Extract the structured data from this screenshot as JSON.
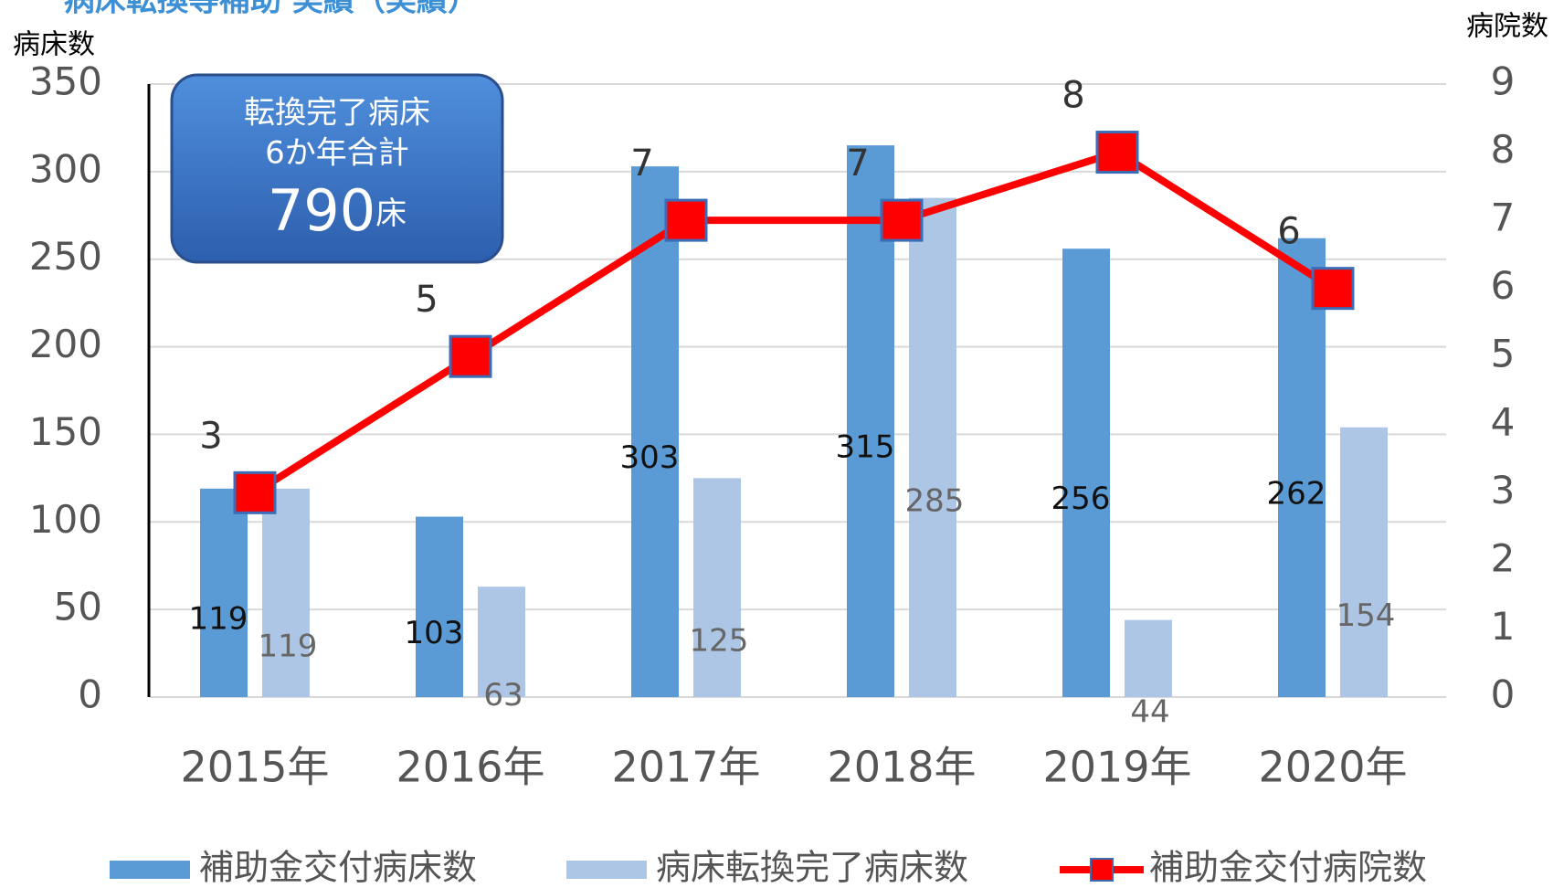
{
  "chart_data": {
    "type": "bar",
    "title": "病床転換等補助 実績（実績）",
    "y_label": "病床数",
    "y2_label": "病院数",
    "categories": [
      "2015年",
      "2016年",
      "2017年",
      "2018年",
      "2019年",
      "2020年"
    ],
    "series": [
      {
        "name": "補助金交付病床数",
        "color": "#5b9bd5",
        "values": [
          119,
          103,
          303,
          315,
          256,
          262
        ]
      },
      {
        "name": "病床転換完了病床数",
        "color": "#adc6e6",
        "values": [
          119,
          63,
          125,
          285,
          44,
          154
        ]
      },
      {
        "name": "補助金交付病院数",
        "color": "#ff0000",
        "type": "line",
        "axis": "y2",
        "values": [
          3,
          5,
          7,
          7,
          8,
          6
        ]
      }
    ],
    "ylim": [
      0,
      350
    ],
    "yticks": [
      0,
      50,
      100,
      150,
      200,
      250,
      300,
      350
    ],
    "y2lim": [
      0,
      9
    ],
    "y2ticks": [
      0,
      1,
      2,
      3,
      4,
      5,
      6,
      7,
      8,
      9
    ],
    "grid": true,
    "legend": "bottom",
    "annotation": {
      "lines": [
        "転換完了病床",
        "6か年合計"
      ],
      "value": "790",
      "unit": "床"
    }
  }
}
